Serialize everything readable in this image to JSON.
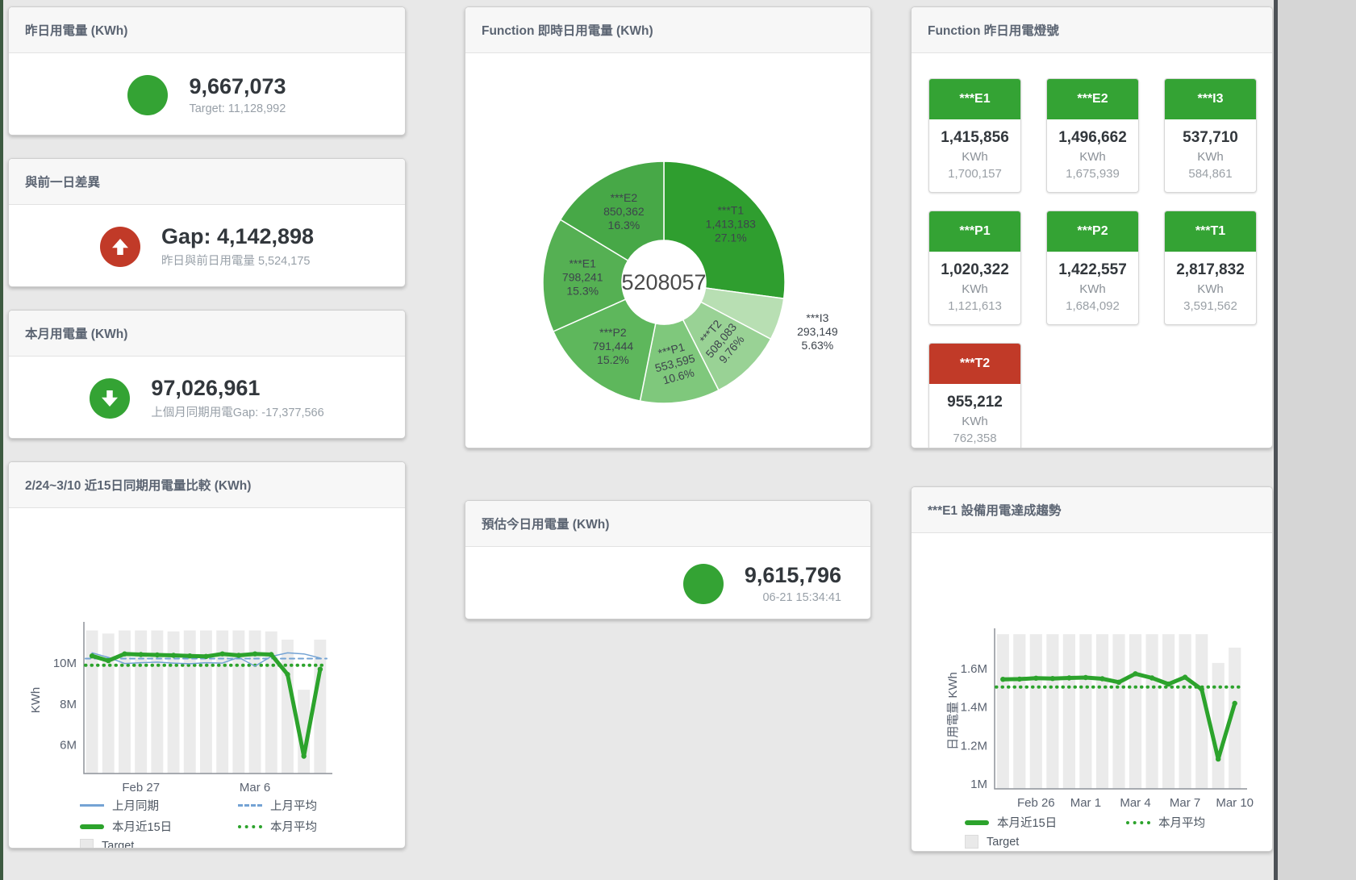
{
  "colors": {
    "green": "#34a334",
    "red": "#c13a28",
    "bar_gray": "#ebebeb",
    "blue_line": "#74a3d4",
    "green_line": "#2ca32c"
  },
  "cards": {
    "yesterday": {
      "title": "昨日用電量 (KWh)",
      "value": "9,667,073",
      "subtitle": "Target: 11,128,992"
    },
    "day_gap": {
      "title": "與前一日差異",
      "value": "Gap: 4,142,898",
      "subtitle": "昨日與前日用電量 5,524,175"
    },
    "month": {
      "title": "本月用電量 (KWh)",
      "value": "97,026,961",
      "subtitle": "上個月同期用電Gap: -17,377,566"
    },
    "forecast": {
      "title": "預估今日用電量 (KWh)",
      "value": "9,615,796",
      "subtitle": "06-21 15:34:41"
    }
  },
  "lights": {
    "title": "Function 昨日用電燈號",
    "unit": "KWh",
    "tiles": [
      {
        "label": "***E1",
        "value": "1,415,856",
        "target": "1,700,157",
        "status": "green"
      },
      {
        "label": "***E2",
        "value": "1,496,662",
        "target": "1,675,939",
        "status": "green"
      },
      {
        "label": "***I3",
        "value": "537,710",
        "target": "584,861",
        "status": "green"
      },
      {
        "label": "***P1",
        "value": "1,020,322",
        "target": "1,121,613",
        "status": "green"
      },
      {
        "label": "***P2",
        "value": "1,422,557",
        "target": "1,684,092",
        "status": "green"
      },
      {
        "label": "***T1",
        "value": "2,817,832",
        "target": "3,591,562",
        "status": "green"
      },
      {
        "label": "***T2",
        "value": "955,212",
        "target": "762,358",
        "status": "red"
      }
    ]
  },
  "chart_data": [
    {
      "id": "donut",
      "type": "pie",
      "title": "Function 即時日用電量 (KWh)",
      "center_total": "5208057",
      "legend_position": "none",
      "clockwise_from_top": true,
      "slices": [
        {
          "name": "***T1",
          "value": 1413183,
          "value_label": "1,413,183",
          "pct": "27.1%",
          "color": "#2f9e2f"
        },
        {
          "name": "***I3",
          "value": 293149,
          "value_label": "293,149",
          "pct": "5.63%",
          "color": "#b8dfb3",
          "label_outside": true
        },
        {
          "name": "***T2",
          "value": 508083,
          "value_label": "508,083",
          "pct": "9.76%",
          "color": "#99d295",
          "rotate": -50
        },
        {
          "name": "***P1",
          "value": 553595,
          "value_label": "553,595",
          "pct": "10.6%",
          "color": "#7fc87c",
          "rotate": -15
        },
        {
          "name": "***P2",
          "value": 791444,
          "value_label": "791,444",
          "pct": "15.2%",
          "color": "#5eb75c"
        },
        {
          "name": "***E1",
          "value": 798241,
          "value_label": "798,241",
          "pct": "15.3%",
          "color": "#55b053"
        },
        {
          "name": "***E2",
          "value": 850362,
          "value_label": "850,362",
          "pct": "16.3%",
          "color": "#47a847"
        }
      ]
    },
    {
      "id": "compare",
      "type": "line",
      "title": "2/24~3/10 近15日同期用電量比較 (KWh)",
      "xlabel": "",
      "ylabel": "KWh",
      "unit": "M KWh",
      "grid": false,
      "y_min": 4.6,
      "y_max": 11.78,
      "y_ticks": [
        {
          "v": 6,
          "label": "6M"
        },
        {
          "v": 8,
          "label": "8M"
        },
        {
          "v": 10,
          "label": "10M"
        }
      ],
      "x_ticks": [
        {
          "i": 3,
          "label": "Feb 27"
        },
        {
          "i": 10,
          "label": "Mar 6"
        }
      ],
      "target_bars": [
        11.6,
        11.45,
        11.6,
        11.6,
        11.6,
        11.55,
        11.6,
        11.6,
        11.6,
        11.6,
        11.6,
        11.55,
        11.15,
        8.7,
        11.15
      ],
      "series": [
        {
          "name": "上月平均",
          "style": "dashed",
          "color": "#74a3d4",
          "w": 2,
          "const": 10.22
        },
        {
          "name": "本月平均",
          "style": "dotted",
          "color": "#2ca32c",
          "w": 4,
          "const": 9.9
        },
        {
          "name": "上月同期",
          "style": "solid",
          "color": "#74a3d4",
          "w": 1.5,
          "values": [
            10.5,
            10.28,
            9.98,
            10.02,
            10.05,
            10.0,
            9.97,
            10.02,
            10.0,
            10.28,
            9.85,
            10.33,
            10.5,
            10.45,
            10.25
          ]
        },
        {
          "name": "本月近15日",
          "style": "solid",
          "color": "#2ca32c",
          "w": 5,
          "markers": true,
          "values": [
            10.35,
            10.12,
            10.45,
            10.42,
            10.4,
            10.38,
            10.35,
            10.33,
            10.45,
            10.38,
            10.45,
            10.42,
            9.45,
            5.45,
            9.7
          ]
        }
      ],
      "legend": [
        {
          "name": "上月同期",
          "sw": "line-blue"
        },
        {
          "name": "上月平均",
          "sw": "dash-blue"
        },
        {
          "name": "本月近15日",
          "sw": "line-green"
        },
        {
          "name": "本月平均",
          "sw": "dot-green"
        },
        {
          "name": "Target",
          "sw": "box"
        }
      ]
    },
    {
      "id": "e1",
      "type": "line",
      "title": "***E1 設備用電達成趨勢",
      "xlabel": "",
      "ylabel": "日用電量 KWh",
      "unit": "M KWh",
      "grid": false,
      "y_min": 0.975,
      "y_max": 1.785,
      "y_ticks": [
        {
          "v": 1,
          "label": "1M"
        },
        {
          "v": 1.2,
          "label": "1.2M"
        },
        {
          "v": 1.4,
          "label": "1.4M"
        },
        {
          "v": 1.6,
          "label": "1.6M"
        }
      ],
      "x_ticks": [
        {
          "i": 2,
          "label": "Feb 26"
        },
        {
          "i": 5,
          "label": "Mar 1"
        },
        {
          "i": 8,
          "label": "Mar 4"
        },
        {
          "i": 11,
          "label": "Mar 7"
        },
        {
          "i": 14,
          "label": "Mar 10"
        }
      ],
      "target_bars": [
        1.78,
        1.78,
        1.78,
        1.78,
        1.78,
        1.78,
        1.78,
        1.78,
        1.78,
        1.78,
        1.78,
        1.78,
        1.78,
        1.63,
        1.71
      ],
      "series": [
        {
          "name": "本月平均",
          "style": "dotted",
          "color": "#2ca32c",
          "w": 4,
          "const": 1.505
        },
        {
          "name": "本月近15日",
          "style": "solid",
          "color": "#2ca32c",
          "w": 5,
          "markers": true,
          "values": [
            1.545,
            1.546,
            1.551,
            1.549,
            1.552,
            1.554,
            1.548,
            1.53,
            1.574,
            1.552,
            1.52,
            1.556,
            1.493,
            1.13,
            1.42
          ]
        }
      ],
      "legend": [
        {
          "name": "本月近15日",
          "sw": "line-green"
        },
        {
          "name": "本月平均",
          "sw": "dot-green"
        },
        {
          "name": "Target",
          "sw": "box"
        }
      ]
    }
  ]
}
